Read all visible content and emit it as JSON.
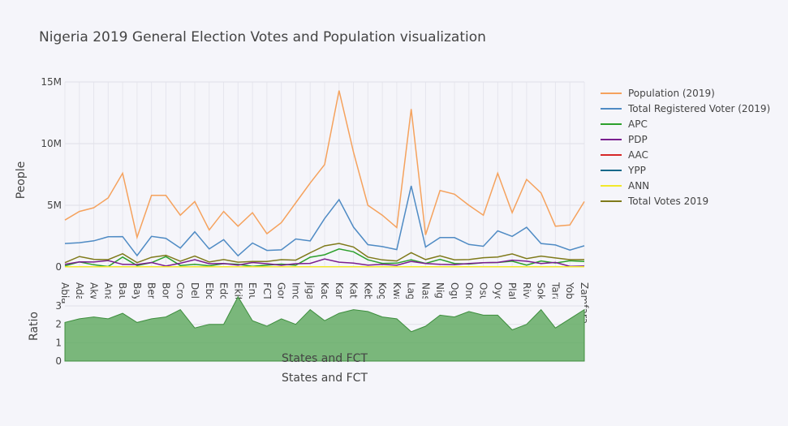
{
  "chart_data": {
    "title": "Nigeria 2019 General Election Votes and Population visualization",
    "top": {
      "type": "line",
      "ylabel": "People",
      "ylim": [
        0,
        15000000
      ],
      "yticks": [
        0,
        5000000,
        10000000,
        15000000
      ],
      "ytick_labels": [
        "0",
        "5M",
        "10M",
        "15M"
      ],
      "grid": true
    },
    "bottom": {
      "type": "area",
      "ylabel": "Ratio",
      "xlabel": "States and FCT",
      "ylim": [
        0,
        3.4
      ],
      "yticks": [
        0,
        1,
        2,
        3
      ],
      "ytick_labels": [
        "0",
        "1",
        "2",
        "3"
      ],
      "color": "#5ba85b",
      "values": [
        2.1,
        2.3,
        2.4,
        2.3,
        2.6,
        2.1,
        2.3,
        2.4,
        2.8,
        1.8,
        2.0,
        2.0,
        3.5,
        2.2,
        1.9,
        2.3,
        2.0,
        2.8,
        2.2,
        2.6,
        2.8,
        2.7,
        2.4,
        2.3,
        1.6,
        1.9,
        2.5,
        2.4,
        2.7,
        2.5,
        2.5,
        1.7,
        2.0,
        2.8,
        1.8,
        2.3,
        2.8
      ]
    },
    "categories": [
      "Abia",
      "Adamawa",
      "Akwa Ibom",
      "Anambra",
      "Bauchi",
      "Bayelsa",
      "Benue",
      "Borno",
      "Cross River",
      "Delta",
      "Ebonyi",
      "Edo",
      "Ekiti",
      "Enugu",
      "FCT",
      "Gombe",
      "Imo",
      "Jigawa",
      "Kaduna",
      "Kano",
      "Katsina",
      "Kebbi",
      "Kogi",
      "Kwara",
      "Lagos",
      "Nasarawa",
      "Niger",
      "Ogun",
      "Ondo",
      "Osun",
      "Oyo",
      "Plateau",
      "Rivers",
      "Sokoto",
      "Taraba",
      "Yobe",
      "Zamfara"
    ],
    "legend_position": "right",
    "series": [
      {
        "name": "Population (2019)",
        "color": "#f5a25d",
        "values": [
          3.8,
          4.5,
          4.8,
          5.6,
          7.6,
          2.4,
          5.8,
          5.8,
          4.2,
          5.3,
          3.0,
          4.5,
          3.3,
          4.4,
          2.7,
          3.6,
          5.2,
          6.8,
          8.3,
          14.3,
          9.3,
          5.0,
          4.2,
          3.2,
          12.8,
          2.6,
          6.2,
          5.9,
          5.0,
          4.2,
          7.6,
          4.4,
          7.1,
          6.0,
          3.3,
          3.4,
          5.3
        ]
      },
      {
        "name": "Total Registered Voter (2019)",
        "color": "#4f8bc4",
        "values": [
          1.9,
          1.97,
          2.12,
          2.45,
          2.46,
          0.92,
          2.48,
          2.32,
          1.53,
          2.85,
          1.46,
          2.21,
          0.91,
          1.94,
          1.34,
          1.39,
          2.27,
          2.11,
          3.93,
          5.46,
          3.23,
          1.81,
          1.65,
          1.41,
          6.57,
          1.62,
          2.39,
          2.38,
          1.82,
          1.68,
          2.93,
          2.48,
          3.22,
          1.9,
          1.78,
          1.37,
          1.72
        ]
      },
      {
        "name": "APC",
        "color": "#2ca02c",
        "values": [
          0.09,
          0.41,
          0.18,
          0.03,
          0.8,
          0.12,
          0.35,
          0.84,
          0.12,
          0.22,
          0.09,
          0.27,
          0.22,
          0.05,
          0.15,
          0.23,
          0.14,
          0.79,
          0.99,
          1.46,
          1.23,
          0.58,
          0.29,
          0.31,
          0.58,
          0.29,
          0.61,
          0.28,
          0.24,
          0.35,
          0.36,
          0.47,
          0.15,
          0.49,
          0.32,
          0.5,
          0.44
        ]
      },
      {
        "name": "PDP",
        "color": "#7a1f8f",
        "values": [
          0.22,
          0.41,
          0.4,
          0.52,
          0.21,
          0.2,
          0.36,
          0.07,
          0.3,
          0.59,
          0.26,
          0.28,
          0.15,
          0.36,
          0.26,
          0.14,
          0.26,
          0.29,
          0.65,
          0.39,
          0.31,
          0.15,
          0.22,
          0.14,
          0.45,
          0.28,
          0.22,
          0.19,
          0.28,
          0.34,
          0.37,
          0.55,
          0.47,
          0.28,
          0.37,
          0.05,
          0.07
        ]
      },
      {
        "name": "AAC",
        "color": "#d62728",
        "values": [
          0.01,
          0.01,
          0.01,
          0.01,
          0.01,
          0.01,
          0.01,
          0.01,
          0.01,
          0.01,
          0.01,
          0.01,
          0.01,
          0.01,
          0.01,
          0.01,
          0.01,
          0.01,
          0.01,
          0.01,
          0.01,
          0.01,
          0.01,
          0.01,
          0.01,
          0.01,
          0.01,
          0.01,
          0.01,
          0.01,
          0.01,
          0.01,
          0.01,
          0.01,
          0.01,
          0.01,
          0.01
        ]
      },
      {
        "name": "YPP",
        "color": "#17698a",
        "values": [
          0.01,
          0.01,
          0.01,
          0.01,
          0.01,
          0.01,
          0.01,
          0.01,
          0.01,
          0.01,
          0.01,
          0.01,
          0.01,
          0.01,
          0.01,
          0.01,
          0.01,
          0.01,
          0.01,
          0.01,
          0.01,
          0.01,
          0.01,
          0.01,
          0.01,
          0.01,
          0.01,
          0.01,
          0.01,
          0.01,
          0.01,
          0.01,
          0.01,
          0.01,
          0.01,
          0.01,
          0.01
        ]
      },
      {
        "name": "ANN",
        "color": "#f2e82a",
        "values": [
          0.01,
          0.01,
          0.01,
          0.01,
          0.01,
          0.01,
          0.01,
          0.01,
          0.01,
          0.01,
          0.01,
          0.01,
          0.01,
          0.01,
          0.01,
          0.01,
          0.01,
          0.01,
          0.01,
          0.01,
          0.01,
          0.01,
          0.01,
          0.01,
          0.01,
          0.01,
          0.01,
          0.01,
          0.01,
          0.01,
          0.01,
          0.01,
          0.01,
          0.01,
          0.01,
          0.01,
          0.01
        ]
      },
      {
        "name": "Total Votes 2019",
        "color": "#7f7a1a",
        "values": [
          0.35,
          0.85,
          0.62,
          0.59,
          1.07,
          0.35,
          0.78,
          0.95,
          0.47,
          0.89,
          0.4,
          0.6,
          0.39,
          0.45,
          0.45,
          0.59,
          0.55,
          1.15,
          1.71,
          1.91,
          1.62,
          0.8,
          0.57,
          0.49,
          1.16,
          0.6,
          0.9,
          0.58,
          0.6,
          0.75,
          0.81,
          1.06,
          0.68,
          0.88,
          0.73,
          0.59,
          0.6
        ]
      }
    ],
    "series_scale": 1000000
  }
}
